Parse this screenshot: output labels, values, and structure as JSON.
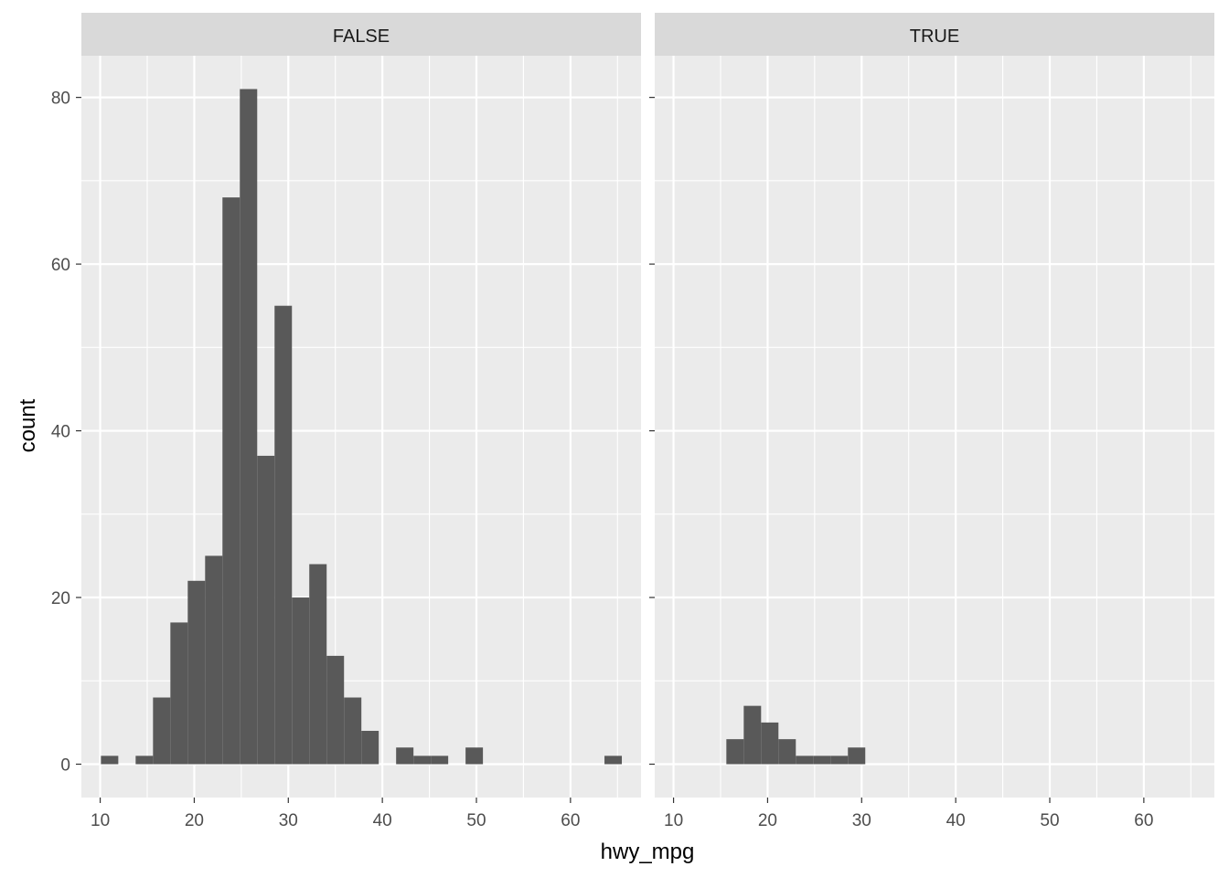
{
  "chart_data": {
    "type": "histogram",
    "facet_variable": "",
    "xlabel": "hwy_mpg",
    "ylabel": "count",
    "xlim": [
      8,
      67.5
    ],
    "ylim": [
      -4,
      85
    ],
    "x_ticks": [
      10,
      20,
      30,
      40,
      50,
      60
    ],
    "y_ticks": [
      0,
      20,
      40,
      60,
      80
    ],
    "bin_width": 1.846,
    "bin_centers": [
      11.0,
      12.846,
      14.692,
      16.538,
      18.385,
      20.231,
      22.077,
      23.923,
      25.769,
      27.615,
      29.462,
      31.308,
      33.154,
      35.0,
      36.846,
      38.692,
      40.538,
      42.385,
      44.231,
      46.077,
      47.923,
      49.769,
      51.615,
      53.462,
      55.308,
      57.154,
      59.0,
      60.846,
      62.692,
      64.538,
      66.385
    ],
    "panels": [
      {
        "label": "FALSE",
        "counts": [
          1,
          0,
          1,
          8,
          17,
          22,
          25,
          68,
          81,
          37,
          55,
          20,
          24,
          13,
          8,
          4,
          0,
          2,
          1,
          1,
          0,
          2,
          0,
          0,
          0,
          0,
          0,
          0,
          0,
          1,
          0
        ]
      },
      {
        "label": "TRUE",
        "counts": [
          0,
          0,
          0,
          3,
          7,
          5,
          3,
          1,
          1,
          1,
          2,
          0,
          0,
          0,
          0,
          0,
          0,
          0,
          0,
          0,
          0,
          0,
          0,
          0,
          0,
          0,
          0,
          0,
          0,
          0,
          0
        ]
      }
    ],
    "bar_color": "#595959",
    "panel_background": "#ebebeb",
    "strip_background": "#d9d9d9",
    "grid_color": "#ffffff",
    "grid": true,
    "legend": "none"
  }
}
